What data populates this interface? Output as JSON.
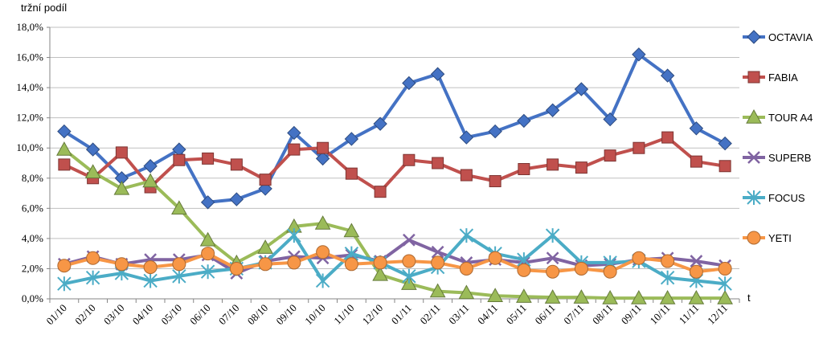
{
  "chart_data": {
    "type": "line",
    "ylabel": "tržní podíl",
    "xlabel": "t",
    "ylim": [
      0,
      18
    ],
    "ytick_step": 2,
    "ytick_suffix": "%",
    "grid": true,
    "legend_position": "right",
    "categories": [
      "01/10",
      "02/10",
      "03/10",
      "04/10",
      "05/10",
      "06/10",
      "07/10",
      "08/10",
      "09/10",
      "10/10",
      "11/10",
      "12/10",
      "01/11",
      "02/11",
      "03/11",
      "04/11",
      "05/11",
      "06/11",
      "07/11",
      "08/11",
      "09/11",
      "10/11",
      "11/11",
      "12/11"
    ],
    "series": [
      {
        "name": "OCTAVIA",
        "color": "#4472C4",
        "marker": "diamond",
        "values": [
          11.1,
          9.9,
          8.0,
          8.8,
          9.9,
          6.4,
          6.6,
          7.3,
          11.0,
          9.3,
          10.6,
          11.6,
          14.3,
          14.9,
          10.7,
          11.1,
          11.8,
          12.5,
          13.9,
          11.9,
          16.2,
          14.8,
          11.3,
          10.3
        ]
      },
      {
        "name": "FABIA",
        "color": "#C0504D",
        "marker": "square",
        "values": [
          8.9,
          8.0,
          9.7,
          7.4,
          9.2,
          9.3,
          8.9,
          7.9,
          9.9,
          10.0,
          8.3,
          7.1,
          9.2,
          9.0,
          8.2,
          7.8,
          8.6,
          8.9,
          8.7,
          9.5,
          10.0,
          10.7,
          9.1,
          8.8
        ]
      },
      {
        "name": "TOUR A4",
        "color": "#9BBB59",
        "marker": "triangle",
        "values": [
          9.9,
          8.4,
          7.3,
          7.8,
          6.0,
          3.9,
          2.4,
          3.4,
          4.8,
          5.0,
          4.5,
          1.6,
          1.0,
          0.5,
          0.4,
          0.2,
          0.15,
          0.1,
          0.1,
          0.05,
          0.05,
          0.05,
          0.05,
          0.05
        ]
      },
      {
        "name": "SUPERB",
        "color": "#8064A2",
        "marker": "x",
        "values": [
          2.3,
          2.8,
          2.3,
          2.6,
          2.6,
          2.9,
          1.7,
          2.5,
          2.8,
          2.7,
          2.9,
          2.5,
          3.9,
          3.1,
          2.4,
          2.6,
          2.4,
          2.7,
          2.2,
          2.3,
          2.6,
          2.7,
          2.5,
          2.2
        ]
      },
      {
        "name": "FOCUS",
        "color": "#4BACC6",
        "marker": "star",
        "values": [
          1.0,
          1.4,
          1.7,
          1.2,
          1.5,
          1.8,
          2.0,
          2.4,
          4.2,
          1.2,
          3.0,
          2.4,
          1.5,
          2.1,
          4.2,
          3.0,
          2.6,
          4.2,
          2.4,
          2.4,
          2.5,
          1.4,
          1.2,
          1.0
        ]
      },
      {
        "name": "YETI",
        "color": "#F79646",
        "marker": "circle",
        "values": [
          2.2,
          2.7,
          2.3,
          2.1,
          2.3,
          3.0,
          2.0,
          2.3,
          2.4,
          3.1,
          2.3,
          2.4,
          2.5,
          2.4,
          2.0,
          2.7,
          1.9,
          1.8,
          2.0,
          1.8,
          2.7,
          2.5,
          1.8,
          2.0
        ]
      }
    ]
  }
}
